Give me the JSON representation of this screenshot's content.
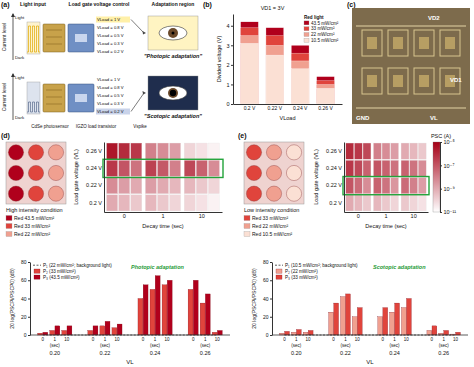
{
  "panels": {
    "labels": [
      "(a)",
      "(b)",
      "(c)",
      "(d)",
      "(e)"
    ],
    "a": {
      "y_label": "Current level",
      "level_high": "Light",
      "level_low": "Dark",
      "headers": [
        "Light input",
        "Load gate voltage control",
        "Adaptation region"
      ],
      "rows": [
        {
          "voltages": [
            "VLoad = 1 V",
            "VLoad = 0.8 V",
            "VLoad = 0.5 V",
            "VLoad = 0.3 V",
            "VLoad = 0.2 V"
          ],
          "result": "\"Photopic adaptation\""
        },
        {
          "voltages": [
            "VLoad = 1 V",
            "VLoad = 0.8 V",
            "VLoad = 0.5 V",
            "VLoad = 0.3 V",
            "VLoad = 0.2 V"
          ],
          "result": "\"Scotopic adaptation\""
        }
      ],
      "footers": [
        "CdSe photosensor",
        "IGZO load transistor",
        "Vspike"
      ]
    },
    "c": {
      "labels": [
        "VD2",
        "VD1",
        "GND",
        "VL"
      ]
    },
    "d": {
      "caption": "High intensity condition"
    },
    "e": {
      "caption": "Low intensity condition"
    }
  },
  "chart_data": [
    {
      "type": "bar",
      "annotation": "VD1 = 3V",
      "xlabel": "VLoad",
      "ylabel": "Divided voltage (V)",
      "categories": [
        "0.2 V",
        "0.22 V",
        "0.24 V",
        "0.26 V"
      ],
      "legend_title": "Red light",
      "legend": "upper right",
      "stacked": false,
      "series": [
        {
          "name": "43.5 mW/cm²",
          "color": "#b0001c",
          "values": [
            4.2,
            3.9,
            3.0,
            1.4
          ]
        },
        {
          "name": "33 mW/cm²",
          "color": "#e0443c",
          "values": [
            3.9,
            3.5,
            2.6,
            1.2
          ]
        },
        {
          "name": "22 mW/cm²",
          "color": "#f0a090",
          "values": [
            3.5,
            3.0,
            2.2,
            1.0
          ]
        },
        {
          "name": "10.5 mW/cm²",
          "color": "#fbe0d4",
          "values": [
            3.1,
            2.5,
            1.8,
            0.8
          ]
        }
      ],
      "ylim": [
        0,
        4.6
      ],
      "yticks": [
        0,
        1,
        2,
        3,
        4
      ]
    },
    {
      "type": "heatmap",
      "xlabel": "Decay time (sec)",
      "ylabel": "Load gate voltage (VL)",
      "x": [
        "0",
        "1",
        "10"
      ],
      "y": [
        "0.2 V",
        "0.22 V",
        "0.24 V",
        "0.26 V"
      ],
      "highlight": "0.24 V",
      "log": true,
      "zlim": [
        1e-11,
        1e-05
      ],
      "series": [
        {
          "name": "Red 43.5 mW/cm²",
          "color": "#b0001c",
          "values": [
            [
              1e-09,
              5e-10,
              1e-10
            ],
            [
              5e-09,
              2e-09,
              5e-10
            ],
            [
              5e-07,
              3e-07,
              2e-07
            ],
            [
              3e-06,
              1e-08,
              1e-10
            ]
          ]
        },
        {
          "name": "Red 33 mW/cm²",
          "color": "#e0443c",
          "values": [
            [
              5e-10,
              2e-10,
              5e-11
            ],
            [
              2e-09,
              1e-09,
              2e-10
            ],
            [
              1e-07,
              8e-08,
              5e-08
            ],
            [
              1e-06,
              5e-09,
              5e-11
            ]
          ]
        },
        {
          "name": "Red 22 mW/cm²",
          "color": "#f0a090",
          "values": [
            [
              2e-10,
              1e-10,
              2e-11
            ],
            [
              1e-09,
              5e-10,
              1e-10
            ],
            [
              2e-08,
              1e-08,
              5e-09
            ],
            [
              5e-07,
              2e-09,
              2e-11
            ]
          ]
        }
      ]
    },
    {
      "type": "bar",
      "annotation": "Photopic adaptation",
      "xlabel": "VL",
      "ylabel": "20 log(PSCPi/PSCP0) (dB)",
      "categories": [
        "0",
        "1",
        "10",
        "0",
        "1",
        "10",
        "0",
        "1",
        "10",
        "0",
        "1",
        "10"
      ],
      "groups": [
        "0.20",
        "0.22",
        "0.24",
        "0.26"
      ],
      "group_note": "(sec)",
      "legend": "upper left",
      "stacked": false,
      "series": [
        {
          "name": "P₁ (22 mW/cm²; background light)",
          "type": "line",
          "line_style": "dashed",
          "color": "#333333",
          "values": [
            0,
            0,
            0,
            0,
            0,
            0,
            0,
            0,
            0,
            0,
            0,
            0
          ]
        },
        {
          "name": "P₂ (33 mW/cm²)",
          "color": "#e0443c",
          "values": [
            2,
            5,
            5,
            5,
            10,
            8,
            40,
            50,
            55,
            50,
            35,
            3
          ]
        },
        {
          "name": "P₃ (43.5 mW/cm²)",
          "color": "#b0001c",
          "values": [
            3,
            10,
            10,
            10,
            15,
            12,
            55,
            65,
            60,
            60,
            45,
            5
          ]
        }
      ],
      "ylim": [
        0,
        80
      ],
      "yticks": [
        0,
        20,
        40,
        60,
        80
      ]
    },
    {
      "type": "heatmap",
      "xlabel": "Decay time (sec)",
      "ylabel": "Load gate voltage (VL)",
      "x": [
        "0",
        "1",
        "10"
      ],
      "y": [
        "0.2 V",
        "0.22 V",
        "0.24 V",
        "0.26 V"
      ],
      "highlight": "0.22 V",
      "log": true,
      "zlim": [
        1e-11,
        1e-05
      ],
      "colorbar": {
        "label": "PSC (A)",
        "ticks": [
          {
            "value": 1e-05,
            "label": "10⁻⁵"
          },
          {
            "value": 1e-07,
            "label": "10⁻⁷"
          },
          {
            "value": 1e-09,
            "label": "10⁻⁹"
          },
          {
            "value": 1e-11,
            "label": "10⁻¹¹"
          }
        ]
      },
      "series": [
        {
          "name": "Red 33 mW/cm²",
          "color": "#e0443c",
          "values": [
            [
              1e-09,
              5e-10,
              2e-10
            ],
            [
              1e-07,
              5e-08,
              3e-08
            ],
            [
              5e-07,
              1e-07,
              5e-08
            ],
            [
              1e-06,
              1e-08,
              1e-09
            ]
          ]
        },
        {
          "name": "Red 22 mW/cm²",
          "color": "#f0a090",
          "values": [
            [
              5e-10,
              2e-10,
              1e-10
            ],
            [
              3e-08,
              2e-08,
              1e-08
            ],
            [
              2e-07,
              5e-08,
              2e-08
            ],
            [
              5e-07,
              5e-09,
              5e-10
            ]
          ]
        },
        {
          "name": "Red 10.5 mW/cm²",
          "color": "#fbe0d4",
          "values": [
            [
              2e-10,
              1e-10,
              5e-11
            ],
            [
              5e-09,
              3e-09,
              2e-09
            ],
            [
              5e-08,
              2e-08,
              5e-09
            ],
            [
              2e-07,
              2e-09,
              2e-10
            ]
          ]
        }
      ]
    },
    {
      "type": "bar",
      "annotation": "Scotopic adaptation",
      "xlabel": "VL",
      "ylabel": "20 log(PSCPi/PSCP0) (dB)",
      "categories": [
        "0",
        "1",
        "10",
        "0",
        "1",
        "10",
        "0",
        "1",
        "10",
        "0",
        "1",
        "10"
      ],
      "groups": [
        "0.20",
        "0.22",
        "0.24",
        "0.26"
      ],
      "group_note": "(sec)",
      "legend": "upper left",
      "stacked": false,
      "series": [
        {
          "name": "P₁ (10.5 mW/cm²; background light)",
          "type": "line",
          "line_style": "dashed",
          "color": "#333333",
          "values": [
            0,
            0,
            0,
            0,
            0,
            0,
            0,
            0,
            0,
            0,
            0,
            0
          ]
        },
        {
          "name": "P₂ (22 mW/cm²)",
          "color": "#f0a090",
          "values": [
            2,
            3,
            3,
            25,
            42,
            20,
            20,
            25,
            30,
            5,
            2,
            1
          ]
        },
        {
          "name": "P₃ (33 mW/cm²)",
          "color": "#e0443c",
          "values": [
            4,
            6,
            5,
            35,
            45,
            30,
            30,
            35,
            40,
            10,
            5,
            3
          ]
        }
      ],
      "ylim": [
        0,
        80
      ],
      "yticks": [
        0,
        20,
        40,
        60,
        80
      ]
    }
  ]
}
